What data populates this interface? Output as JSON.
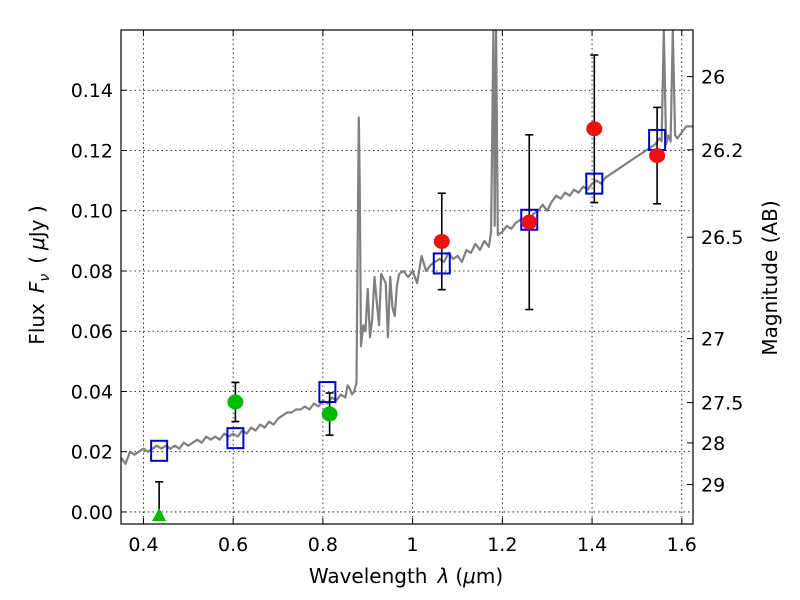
{
  "chart_data": {
    "type": "scatter",
    "xlabel_prefix": "Wavelength",
    "xlabel_symbol": "λ",
    "xlabel_unit_open": "(",
    "xlabel_unit_mu": "μ",
    "xlabel_unit_rest": "m)",
    "ylabel_prefix": "Flux",
    "ylabel_symbol": "F",
    "ylabel_subscript": "ν",
    "ylabel_unit_open": "(",
    "ylabel_unit_mu": "μ",
    "ylabel_unit_rest": "Jy )",
    "y2label": "Magnitude (AB)",
    "xlim": [
      0.35,
      1.625
    ],
    "ylim": [
      -0.004,
      0.16
    ],
    "x_ticks": [
      0.4,
      0.6,
      0.8,
      1.0,
      1.2,
      1.4,
      1.6
    ],
    "x_tick_labels": [
      "0.4",
      "0.6",
      "0.8",
      "1",
      "1.2",
      "1.4",
      "1.6"
    ],
    "y_ticks": [
      0.0,
      0.02,
      0.04,
      0.06,
      0.08,
      0.1,
      0.12,
      0.14
    ],
    "y_tick_labels": [
      "0.00",
      "0.02",
      "0.04",
      "0.06",
      "0.08",
      "0.10",
      "0.12",
      "0.14"
    ],
    "y2_ticks": [
      26,
      26.2,
      26.5,
      27,
      27.5,
      28,
      29
    ],
    "y2_tick_labels": [
      "26",
      "26.2",
      "26.5",
      "27",
      "27.5",
      "28",
      "29"
    ],
    "grid": true,
    "series": [
      {
        "name": "model-spectrum",
        "kind": "line",
        "color": "#808080",
        "x": [
          0.35,
          0.36,
          0.37,
          0.38,
          0.39,
          0.4,
          0.41,
          0.42,
          0.43,
          0.44,
          0.45,
          0.46,
          0.47,
          0.48,
          0.49,
          0.5,
          0.51,
          0.52,
          0.53,
          0.54,
          0.55,
          0.56,
          0.57,
          0.58,
          0.59,
          0.6,
          0.61,
          0.62,
          0.63,
          0.64,
          0.65,
          0.66,
          0.67,
          0.68,
          0.69,
          0.7,
          0.71,
          0.72,
          0.73,
          0.74,
          0.75,
          0.76,
          0.77,
          0.78,
          0.79,
          0.8,
          0.81,
          0.82,
          0.83,
          0.84,
          0.85,
          0.855,
          0.86,
          0.865,
          0.87,
          0.875,
          0.88,
          0.882,
          0.885,
          0.89,
          0.895,
          0.9,
          0.905,
          0.91,
          0.915,
          0.92,
          0.925,
          0.93,
          0.94,
          0.945,
          0.95,
          0.955,
          0.96,
          0.965,
          0.97,
          0.98,
          0.99,
          1.0,
          1.01,
          1.02,
          1.03,
          1.04,
          1.05,
          1.06,
          1.07,
          1.08,
          1.09,
          1.1,
          1.11,
          1.12,
          1.13,
          1.14,
          1.15,
          1.16,
          1.17,
          1.175,
          1.18,
          1.183,
          1.186,
          1.19,
          1.2,
          1.21,
          1.22,
          1.23,
          1.24,
          1.25,
          1.26,
          1.27,
          1.28,
          1.29,
          1.3,
          1.31,
          1.32,
          1.33,
          1.34,
          1.35,
          1.36,
          1.37,
          1.38,
          1.39,
          1.4,
          1.41,
          1.42,
          1.43,
          1.44,
          1.45,
          1.46,
          1.47,
          1.48,
          1.49,
          1.5,
          1.51,
          1.52,
          1.53,
          1.54,
          1.55,
          1.555,
          1.56,
          1.565,
          1.57,
          1.575,
          1.58,
          1.585,
          1.59,
          1.6,
          1.61,
          1.625
        ],
        "y": [
          0.018,
          0.016,
          0.02,
          0.019,
          0.02,
          0.021,
          0.02,
          0.021,
          0.022,
          0.021,
          0.022,
          0.021,
          0.022,
          0.021,
          0.023,
          0.022,
          0.023,
          0.024,
          0.023,
          0.025,
          0.024,
          0.025,
          0.024,
          0.026,
          0.025,
          0.026,
          0.025,
          0.027,
          0.026,
          0.028,
          0.027,
          0.029,
          0.028,
          0.03,
          0.029,
          0.031,
          0.032,
          0.033,
          0.033,
          0.034,
          0.034,
          0.035,
          0.034,
          0.036,
          0.035,
          0.037,
          0.036,
          0.038,
          0.037,
          0.039,
          0.038,
          0.042,
          0.041,
          0.039,
          0.04,
          0.043,
          0.131,
          0.11,
          0.055,
          0.062,
          0.06,
          0.074,
          0.058,
          0.064,
          0.078,
          0.07,
          0.062,
          0.079,
          0.076,
          0.058,
          0.078,
          0.068,
          0.065,
          0.075,
          0.079,
          0.08,
          0.078,
          0.08,
          0.076,
          0.085,
          0.08,
          0.082,
          0.083,
          0.084,
          0.083,
          0.086,
          0.084,
          0.085,
          0.083,
          0.087,
          0.086,
          0.089,
          0.087,
          0.09,
          0.088,
          0.093,
          0.16,
          0.095,
          0.16,
          0.092,
          0.093,
          0.095,
          0.094,
          0.096,
          0.097,
          0.095,
          0.097,
          0.099,
          0.1,
          0.102,
          0.1,
          0.103,
          0.105,
          0.104,
          0.106,
          0.105,
          0.107,
          0.106,
          0.108,
          0.107,
          0.109,
          0.11,
          0.109,
          0.111,
          0.112,
          0.113,
          0.114,
          0.115,
          0.116,
          0.117,
          0.118,
          0.119,
          0.12,
          0.121,
          0.122,
          0.124,
          0.123,
          0.16,
          0.122,
          0.125,
          0.123,
          0.16,
          0.125,
          0.124,
          0.126,
          0.128,
          0.128
        ]
      },
      {
        "name": "model-photometry",
        "kind": "open-square",
        "color": "#0000cc",
        "x": [
          0.435,
          0.605,
          0.81,
          1.065,
          1.26,
          1.405,
          1.545
        ],
        "y": [
          0.0203,
          0.0245,
          0.0398,
          0.0825,
          0.097,
          0.109,
          0.1235
        ]
      },
      {
        "name": "optical-detections",
        "kind": "filled-circle",
        "color": "#00bb00",
        "x": [
          0.605,
          0.815
        ],
        "y": [
          0.0365,
          0.0325
        ],
        "err": [
          0.0065,
          0.007
        ]
      },
      {
        "name": "optical-upper-limit",
        "kind": "filled-triangle",
        "color": "#00bb00",
        "x": [
          0.435
        ],
        "y": [
          -0.001
        ],
        "err_upper": [
          0.011
        ]
      },
      {
        "name": "infrared-detections",
        "kind": "filled-circle",
        "color": "#ee1111",
        "x": [
          1.065,
          1.26,
          1.405,
          1.545
        ],
        "y": [
          0.0898,
          0.0962,
          0.1272,
          0.1183
        ],
        "err": [
          0.016,
          0.029,
          0.0245,
          0.016
        ]
      }
    ]
  },
  "colors": {
    "spectrum": "#808080",
    "model_square": "#0000cc",
    "optical": "#00bb00",
    "infrared": "#ee1111",
    "errorbar": "#000000"
  }
}
